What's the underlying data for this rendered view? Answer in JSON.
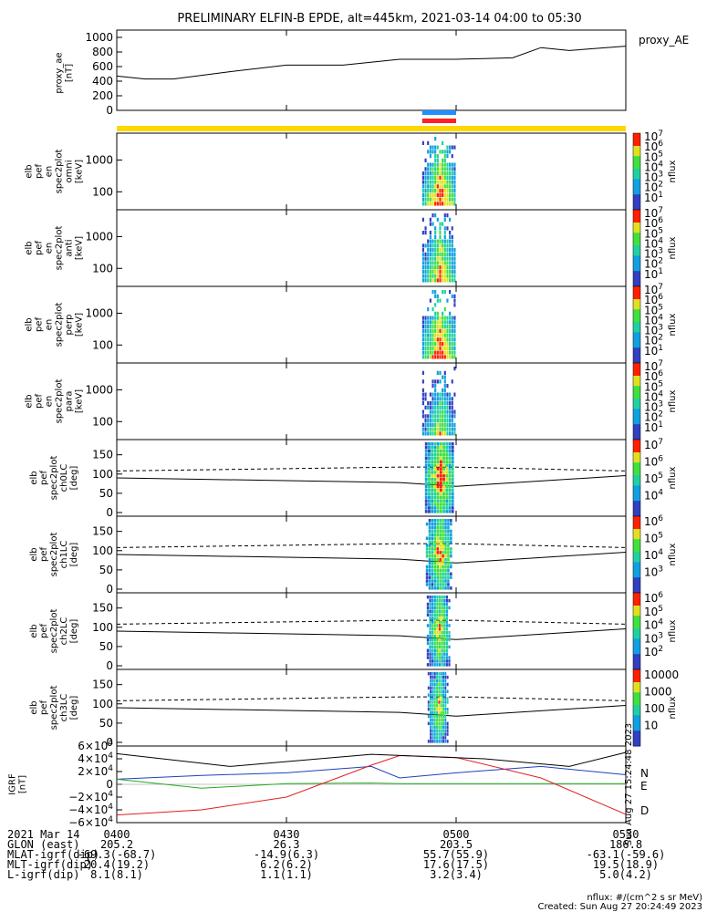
{
  "title": "PRELIMINARY ELFIN-B EPDE, alt=445km, 2021-03-14 04:00 to 05:30",
  "proxy_ae": {
    "ylabel_lines": [
      "proxy_ae",
      "[nT]"
    ],
    "legend": "proxy_AE",
    "yticks": [
      "1000",
      "800",
      "600",
      "400",
      "200",
      "0"
    ],
    "line_color": "#000000"
  },
  "status_bars": [
    {
      "color": "#1e90ff"
    },
    {
      "color": "#ff2020"
    },
    {
      "color": "#ffd700"
    }
  ],
  "energy_panels": [
    {
      "label_lines": [
        "elb",
        "pef",
        "en",
        "spec2plot",
        "omni",
        "[keV]"
      ],
      "yticks": [
        "1000",
        "100"
      ]
    },
    {
      "label_lines": [
        "elb",
        "pef",
        "en",
        "spec2plot",
        "anti",
        "[keV]"
      ],
      "yticks": [
        "1000",
        "100"
      ]
    },
    {
      "label_lines": [
        "elb",
        "pef",
        "en",
        "spec2plot",
        "perp",
        "[keV]"
      ],
      "yticks": [
        "1000",
        "100"
      ]
    },
    {
      "label_lines": [
        "elb",
        "pef",
        "en",
        "spec2plot",
        "para",
        "[keV]"
      ],
      "yticks": [
        "1000",
        "100"
      ]
    }
  ],
  "energy_colorbar": {
    "ticks": [
      "10^7",
      "10^6",
      "10^5",
      "10^4",
      "10^3",
      "10^2",
      "10^1"
    ],
    "unit": "nflux"
  },
  "pa_panels": [
    {
      "label_lines": [
        "elb",
        "pef",
        "spec2plot",
        "ch0LC",
        "[deg]"
      ],
      "yticks": [
        "150",
        "100",
        "50",
        "0"
      ],
      "colorbar_ticks": [
        "10^7",
        "10^6",
        "10^5",
        "10^4"
      ],
      "unit": "nflux"
    },
    {
      "label_lines": [
        "elb",
        "pef",
        "spec2plot",
        "ch1LC",
        "[deg]"
      ],
      "yticks": [
        "150",
        "100",
        "50",
        "0"
      ],
      "colorbar_ticks": [
        "10^6",
        "10^5",
        "10^4",
        "10^3"
      ],
      "unit": "nflux"
    },
    {
      "label_lines": [
        "elb",
        "pef",
        "spec2plot",
        "ch2LC",
        "[deg]"
      ],
      "yticks": [
        "150",
        "100",
        "50",
        "0"
      ],
      "colorbar_ticks": [
        "10^6",
        "10^5",
        "10^4",
        "10^3",
        "10^2"
      ],
      "unit": "nflux"
    },
    {
      "label_lines": [
        "elb",
        "pef",
        "spec2plot",
        "ch3LC",
        "[deg]"
      ],
      "yticks": [
        "150",
        "100",
        "50",
        "0"
      ],
      "colorbar_ticks": [
        "10000",
        "1000",
        "100",
        "10"
      ],
      "unit": "nflux"
    }
  ],
  "igrf": {
    "ylabel_lines": [
      "IGRF",
      "[nT]"
    ],
    "yticks": [
      "6×10^4",
      "4×10^4",
      "2×10^4",
      "0",
      "−2×10^4",
      "−4×10^4",
      "−6×10^4"
    ],
    "legend": [
      {
        "text": "N",
        "color": "#1f3fbf"
      },
      {
        "text": "E",
        "color": "#22aa22"
      },
      {
        "text": "D",
        "color": "#dd2222"
      }
    ],
    "side_note": "Sun Aug 27 15:24:48 2023"
  },
  "chart_data": [
    {
      "type": "line",
      "title": "PRELIMINARY ELFIN-B EPDE, alt=445km, 2021-03-14 04:00 to 05:30",
      "ylabel": "proxy_ae [nT]",
      "ylim": [
        0,
        1100
      ],
      "x": [
        "04:00",
        "04:05",
        "04:10",
        "04:20",
        "04:30",
        "04:40",
        "04:50",
        "05:00",
        "05:05",
        "05:10",
        "05:15",
        "05:20",
        "05:30"
      ],
      "series": [
        {
          "name": "proxy_AE",
          "values": [
            470,
            430,
            430,
            530,
            620,
            620,
            700,
            700,
            710,
            720,
            860,
            820,
            880
          ]
        }
      ]
    },
    {
      "type": "heatmap",
      "ylabel": "energy [keV]",
      "ylim": [
        60,
        7000
      ],
      "x": [
        "04:54",
        "05:00"
      ],
      "colorbar": "nflux 10^1 to 10^7"
    },
    {
      "type": "line",
      "ylabel": "IGRF [nT]",
      "ylim": [
        -60000,
        60000
      ],
      "x": [
        "04:00",
        "04:15",
        "04:30",
        "04:45",
        "04:50",
        "05:00",
        "05:15",
        "05:30"
      ],
      "series": [
        {
          "name": "N",
          "values": [
            8000,
            14000,
            18000,
            28000,
            10000,
            18000,
            28000,
            15000
          ]
        },
        {
          "name": "E",
          "values": [
            8000,
            -6000,
            1000,
            2000,
            1000,
            1000,
            1000,
            1000
          ]
        },
        {
          "name": "D",
          "values": [
            -48000,
            -40000,
            -20000,
            30000,
            45000,
            42000,
            10000,
            -47000
          ]
        }
      ]
    }
  ],
  "xaxis": {
    "ticks": [
      "0400",
      "0430",
      "0500",
      "0530"
    ],
    "rows": [
      {
        "label": "2021 Mar 14",
        "values": [
          "0400",
          "0430",
          "0500",
          "0530"
        ]
      },
      {
        "label": "GLON (east)",
        "values": [
          "205.2",
          "26.3",
          "203.5",
          "186.8"
        ]
      },
      {
        "label": "MLAT-igrf(dip)",
        "values": [
          "-69.3(-68.7)",
          "-14.9(6.3)",
          "55.7(55.9)",
          "-63.1(-59.6)"
        ]
      },
      {
        "label": "MLT-igrf(dip)",
        "values": [
          "20.4(19.2)",
          "6.2(6.2)",
          "17.6(17.5)",
          "19.5(18.9)"
        ]
      },
      {
        "label": "L-igrf(dip)",
        "values": [
          "8.1(8.1)",
          "1.1(1.1)",
          "3.2(3.4)",
          "5.0(4.2)"
        ]
      }
    ]
  },
  "footer": {
    "units": "nflux: #/(cm^2 s sr MeV)",
    "created": "Created: Sun Aug 27 20:24:49 2023"
  }
}
